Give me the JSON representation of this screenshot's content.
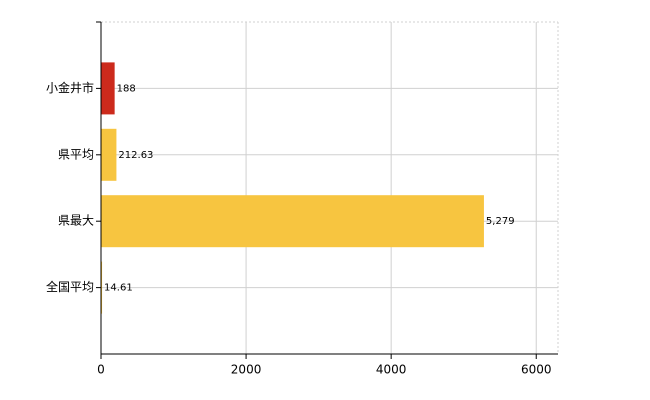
{
  "chart_data": {
    "type": "barh",
    "categories": [
      "小金井市",
      "県平均",
      "県最大",
      "全国平均"
    ],
    "values": [
      188,
      212.63,
      5279,
      14.61
    ],
    "value_labels": [
      "188",
      "212.63",
      "5,279",
      "14.61"
    ],
    "colors": [
      "#cc2a1c",
      "#f7c540",
      "#f7c540",
      "#f7c540"
    ],
    "xlim": [
      0,
      6300
    ],
    "xticks": [
      0,
      2000,
      4000,
      6000
    ],
    "grid": true
  }
}
